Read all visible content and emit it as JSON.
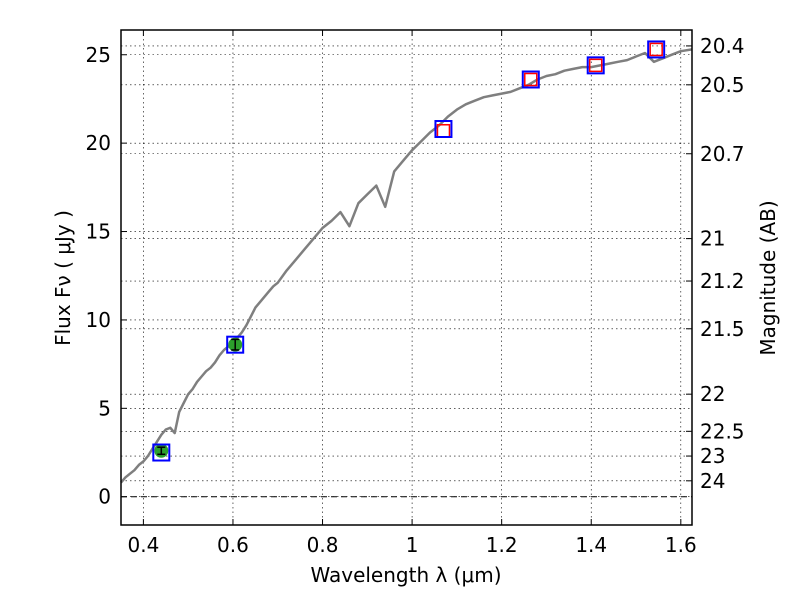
{
  "chart_data": {
    "type": "line",
    "title": "",
    "xlabel": "Wavelength  λ (μm)",
    "ylabel": "Flux  Fν  ( μJy )",
    "y2label": "Magnitude (AB)",
    "xlim": [
      0.35,
      1.625
    ],
    "ylim": [
      -1.6,
      26.4
    ],
    "grid": true,
    "legend": "none",
    "x_ticks": [
      0.4,
      0.6,
      0.8,
      1.0,
      1.2,
      1.4,
      1.6
    ],
    "x_tick_labels": [
      "0.4",
      "0.6",
      "0.8",
      "1",
      "1.2",
      "1.4",
      "1.6"
    ],
    "y_ticks": [
      0,
      5,
      10,
      15,
      20,
      25
    ],
    "y_tick_labels": [
      "0",
      "5",
      "10",
      "15",
      "20",
      "25"
    ],
    "y2_ticks": [
      {
        "flux": 25.5,
        "label": "20.4"
      },
      {
        "flux": 23.3,
        "label": "20.5"
      },
      {
        "flux": 19.4,
        "label": "20.7"
      },
      {
        "flux": 14.6,
        "label": "21"
      },
      {
        "flux": 12.2,
        "label": "21.2"
      },
      {
        "flux": 9.5,
        "label": "21.5"
      },
      {
        "flux": 5.8,
        "label": "22"
      },
      {
        "flux": 3.7,
        "label": "22.5"
      },
      {
        "flux": 2.3,
        "label": "23"
      },
      {
        "flux": 0.9,
        "label": "24"
      }
    ],
    "series": [
      {
        "color": "#7f7f7f",
        "x": [
          0.35,
          0.36,
          0.37,
          0.38,
          0.39,
          0.4,
          0.41,
          0.42,
          0.43,
          0.44,
          0.45,
          0.46,
          0.47,
          0.48,
          0.49,
          0.5,
          0.51,
          0.52,
          0.53,
          0.54,
          0.55,
          0.56,
          0.57,
          0.58,
          0.59,
          0.6,
          0.61,
          0.62,
          0.63,
          0.64,
          0.65,
          0.66,
          0.67,
          0.68,
          0.69,
          0.7,
          0.72,
          0.74,
          0.76,
          0.78,
          0.8,
          0.82,
          0.84,
          0.86,
          0.88,
          0.9,
          0.92,
          0.94,
          0.96,
          0.98,
          1.0,
          1.02,
          1.04,
          1.06,
          1.08,
          1.1,
          1.12,
          1.14,
          1.16,
          1.18,
          1.2,
          1.22,
          1.24,
          1.26,
          1.28,
          1.3,
          1.32,
          1.34,
          1.36,
          1.38,
          1.4,
          1.42,
          1.44,
          1.46,
          1.48,
          1.5,
          1.52,
          1.54,
          1.56,
          1.58,
          1.6,
          1.625
        ],
        "values": [
          0.8,
          1.1,
          1.3,
          1.5,
          1.8,
          2.0,
          2.3,
          2.7,
          3.1,
          3.5,
          3.8,
          3.9,
          3.6,
          4.8,
          5.3,
          5.8,
          6.1,
          6.5,
          6.8,
          7.1,
          7.3,
          7.6,
          8.0,
          8.3,
          8.5,
          8.8,
          9.0,
          9.3,
          9.7,
          10.2,
          10.7,
          11.0,
          11.3,
          11.6,
          11.9,
          12.1,
          12.8,
          13.4,
          14.0,
          14.6,
          15.2,
          15.6,
          16.1,
          15.3,
          16.6,
          17.1,
          17.6,
          16.4,
          18.4,
          19.0,
          19.6,
          20.1,
          20.6,
          21.0,
          21.5,
          21.9,
          22.2,
          22.4,
          22.6,
          22.7,
          22.8,
          22.9,
          23.1,
          23.3,
          23.6,
          23.8,
          23.9,
          24.1,
          24.2,
          24.3,
          24.3,
          24.4,
          24.5,
          24.6,
          24.7,
          24.9,
          25.1,
          24.6,
          24.8,
          25.0,
          25.2,
          25.3
        ]
      }
    ],
    "photometry_filled": [
      {
        "x": 0.44,
        "y": 2.6,
        "yerr": 0.2,
        "color": "#2ca02c"
      },
      {
        "x": 0.605,
        "y": 8.6,
        "yerr": 0.3,
        "color": "#2ca02c"
      }
    ],
    "model_points_red": [
      {
        "x": 1.07,
        "y": 20.7
      },
      {
        "x": 1.265,
        "y": 23.6
      },
      {
        "x": 1.41,
        "y": 24.4
      },
      {
        "x": 1.545,
        "y": 25.3
      }
    ],
    "model_points_blue": [
      {
        "x": 0.44,
        "y": 2.5
      },
      {
        "x": 0.605,
        "y": 8.6
      },
      {
        "x": 1.07,
        "y": 20.8
      },
      {
        "x": 1.265,
        "y": 23.6
      },
      {
        "x": 1.41,
        "y": 24.4
      },
      {
        "x": 1.545,
        "y": 25.3
      }
    ],
    "colors": {
      "red_marker": "#ff0000",
      "blue_marker": "#0000ff",
      "green_marker": "#2ca02c",
      "zero_line": "#000000"
    }
  }
}
